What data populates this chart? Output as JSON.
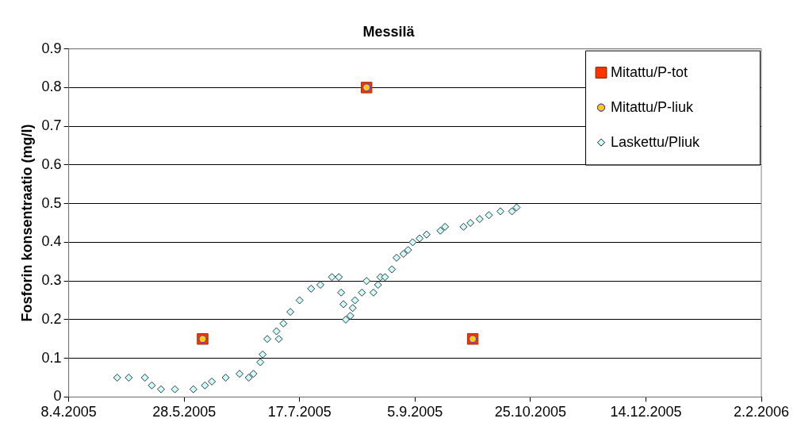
{
  "chart_data": {
    "type": "scatter",
    "title": "Messilä",
    "ylabel": "Fosforin konsentraatio (mg/l)",
    "xlim": [
      "2005-04-08",
      "2006-02-02"
    ],
    "xticks": [
      {
        "value": "2005-04-08",
        "label": "8.4.2005"
      },
      {
        "value": "2005-05-28",
        "label": "28.5.2005"
      },
      {
        "value": "2005-07-17",
        "label": "17.7.2005"
      },
      {
        "value": "2005-09-05",
        "label": "5.9.2005"
      },
      {
        "value": "2005-10-25",
        "label": "25.10.2005"
      },
      {
        "value": "2005-12-14",
        "label": "14.12.2005"
      },
      {
        "value": "2006-02-02",
        "label": "2.2.2006"
      }
    ],
    "ylim": [
      0,
      0.9
    ],
    "yticks": [
      0,
      0.1,
      0.2,
      0.3,
      0.4,
      0.5,
      0.6,
      0.7,
      0.8,
      0.9
    ],
    "grid": "y",
    "legend": "top right",
    "series": [
      {
        "name": "Mitattu/P-tot",
        "color": "#ff3300",
        "marker": "square",
        "x": [
          "2005-06-05",
          "2005-08-15",
          "2005-09-30"
        ],
        "values": [
          0.15,
          0.8,
          0.15
        ]
      },
      {
        "name": "Mitattu/P-liuk",
        "color": "#ffcc00",
        "marker": "circle",
        "x": [
          "2005-06-05",
          "2005-08-15",
          "2005-09-30"
        ],
        "values": [
          0.15,
          0.8,
          0.15
        ]
      },
      {
        "name": "Laskettu/Pliuk",
        "color": "#ccffff",
        "marker": "diamond",
        "x": [
          "2005-04-29",
          "2005-05-04",
          "2005-05-11",
          "2005-05-14",
          "2005-05-18",
          "2005-05-24",
          "2005-06-01",
          "2005-06-06",
          "2005-06-09",
          "2005-06-15",
          "2005-06-21",
          "2005-06-25",
          "2005-06-27",
          "2005-06-30",
          "2005-07-01",
          "2005-07-03",
          "2005-07-07",
          "2005-07-08",
          "2005-07-10",
          "2005-07-13",
          "2005-07-17",
          "2005-07-22",
          "2005-07-26",
          "2005-07-31",
          "2005-08-03",
          "2005-08-04",
          "2005-08-05",
          "2005-08-06",
          "2005-08-08",
          "2005-08-09",
          "2005-08-10",
          "2005-08-13",
          "2005-08-15",
          "2005-08-18",
          "2005-08-20",
          "2005-08-21",
          "2005-08-23",
          "2005-08-26",
          "2005-08-28",
          "2005-08-31",
          "2005-09-02",
          "2005-09-04",
          "2005-09-07",
          "2005-09-10",
          "2005-09-16",
          "2005-09-18",
          "2005-09-26",
          "2005-09-29",
          "2005-10-03",
          "2005-10-07",
          "2005-10-12",
          "2005-10-17",
          "2005-10-19"
        ],
        "values": [
          0.05,
          0.05,
          0.05,
          0.03,
          0.02,
          0.02,
          0.02,
          0.03,
          0.04,
          0.05,
          0.06,
          0.05,
          0.06,
          0.09,
          0.11,
          0.15,
          0.17,
          0.15,
          0.19,
          0.22,
          0.25,
          0.28,
          0.29,
          0.31,
          0.31,
          0.27,
          0.24,
          0.2,
          0.21,
          0.23,
          0.25,
          0.27,
          0.3,
          0.27,
          0.29,
          0.31,
          0.31,
          0.33,
          0.36,
          0.37,
          0.38,
          0.4,
          0.41,
          0.42,
          0.43,
          0.44,
          0.44,
          0.45,
          0.46,
          0.47,
          0.48,
          0.48,
          0.49
        ]
      }
    ]
  }
}
